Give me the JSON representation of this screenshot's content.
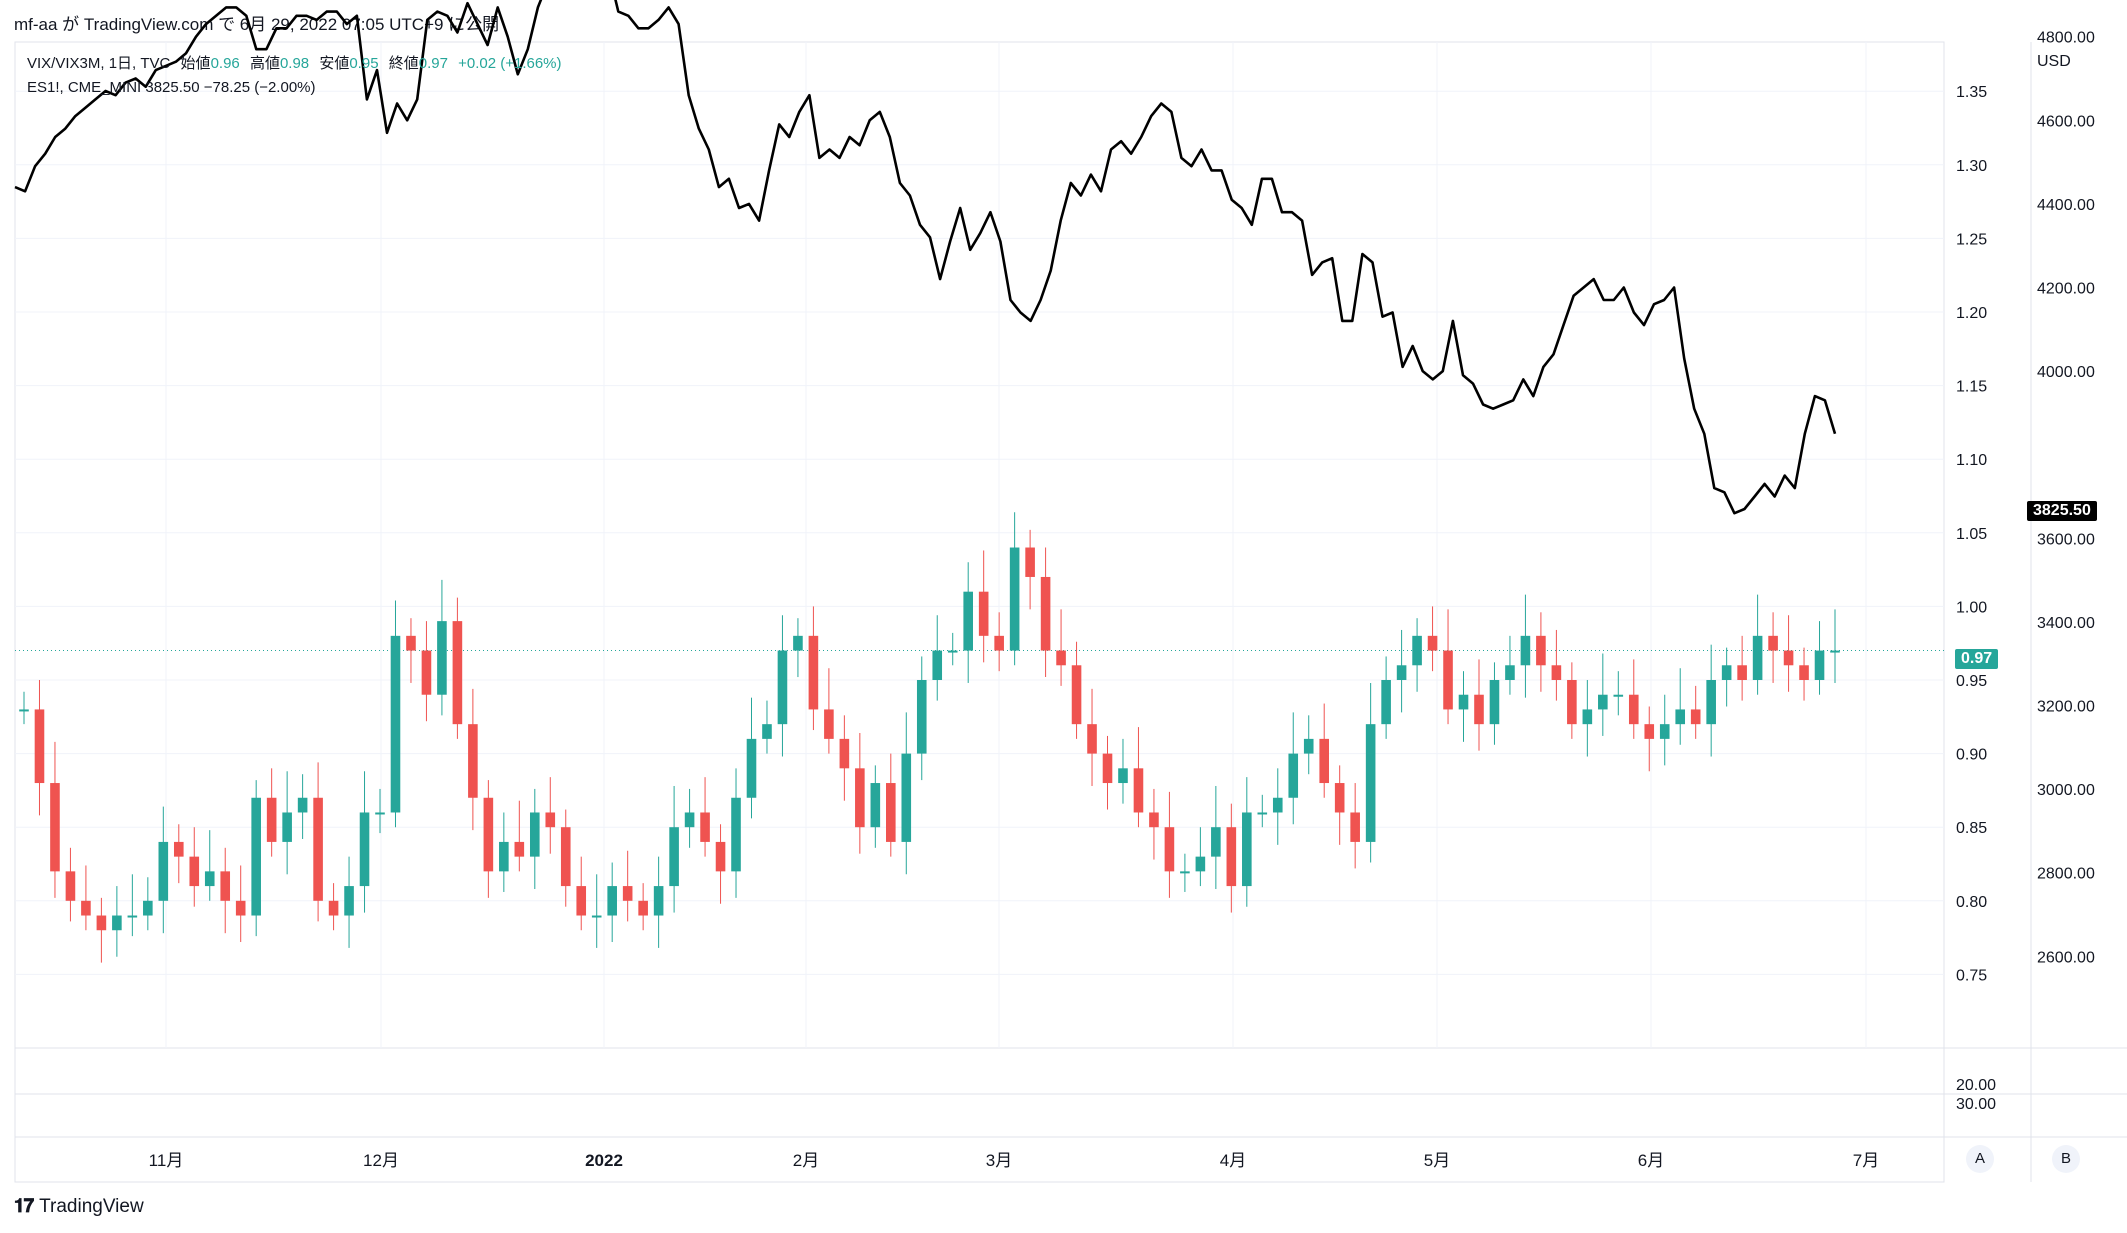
{
  "header": {
    "text": "mf-aa が TradingView.com で 6月 29, 2022 07:05 UTC+9 に公開"
  },
  "legend": {
    "symbol": "VIX/VIX3M, 1日, TVC",
    "open_label": "始値",
    "open_value": "0.96",
    "high_label": "高値",
    "high_value": "0.98",
    "low_label": "安値",
    "low_value": "0.95",
    "close_label": "終値",
    "close_value": "0.97",
    "change": "+0.02 (+1.66%)",
    "overlay": "ES1!, CME_MINI  3825.50  −78.25 (−2.00%)"
  },
  "axis": {
    "left_unit": "",
    "right_unit": "USD",
    "ratio_ticks": [
      "1.35",
      "1.30",
      "1.25",
      "1.20",
      "1.15",
      "1.10",
      "1.05",
      "1.00",
      "0.95",
      "0.90",
      "0.85",
      "0.80",
      "0.75"
    ],
    "usd_ticks": [
      "4800.00",
      "4600.00",
      "4400.00",
      "4200.00",
      "4000.00",
      "3600.00",
      "3400.00",
      "3200.00",
      "3000.00",
      "2800.00",
      "2600.00"
    ],
    "lower_ticks": [
      "20.00",
      "30.00"
    ],
    "time_ticks": [
      "11月",
      "12月",
      "2022",
      "2月",
      "3月",
      "4月",
      "5月",
      "6月",
      "7月"
    ],
    "current_ratio_tag": "0.97",
    "current_usd_tag": "3825.50"
  },
  "buttons": {
    "a": "A",
    "b": "B"
  },
  "footer": {
    "brand": "TradingView"
  },
  "colors": {
    "up": "#26a69a",
    "down": "#ef5350",
    "line": "#000000",
    "grid": "#f0f3fa",
    "tag_ratio": "#26a69a",
    "tag_usd": "#000000"
  },
  "chart_data": [
    {
      "type": "candlestick",
      "title": "VIX/VIX3M, 1日, TVC",
      "x_ticks": [
        "11月",
        "12月",
        "2022",
        "2月",
        "3月",
        "4月",
        "5月",
        "6月",
        "7月"
      ],
      "ylim": [
        0.72,
        1.39
      ],
      "series": [
        {
          "name": "VIX/VIX3M",
          "close": [
            0.93,
            0.88,
            0.82,
            0.8,
            0.79,
            0.78,
            0.79,
            0.79,
            0.8,
            0.84,
            0.83,
            0.81,
            0.82,
            0.8,
            0.79,
            0.87,
            0.84,
            0.86,
            0.87,
            0.8,
            0.79,
            0.81,
            0.86,
            0.86,
            0.98,
            0.97,
            0.94,
            0.99,
            0.92,
            0.87,
            0.82,
            0.84,
            0.83,
            0.86,
            0.85,
            0.81,
            0.79,
            0.79,
            0.81,
            0.8,
            0.79,
            0.81,
            0.85,
            0.86,
            0.84,
            0.82,
            0.87,
            0.91,
            0.92,
            0.97,
            0.98,
            0.93,
            0.91,
            0.89,
            0.85,
            0.88,
            0.84,
            0.9,
            0.95,
            0.97,
            0.97,
            1.01,
            0.98,
            0.97,
            1.04,
            1.02,
            0.97,
            0.96,
            0.92,
            0.9,
            0.88,
            0.89,
            0.86,
            0.85,
            0.82,
            0.82,
            0.83,
            0.85,
            0.81,
            0.86,
            0.86,
            0.87,
            0.9,
            0.91,
            0.88,
            0.86,
            0.84,
            0.92,
            0.95,
            0.96,
            0.98,
            0.97,
            0.93,
            0.94,
            0.92,
            0.95,
            0.96,
            0.98,
            0.96,
            0.95,
            0.92,
            0.93,
            0.94,
            0.94,
            0.92,
            0.91,
            0.92,
            0.93,
            0.92,
            0.95,
            0.96,
            0.95,
            0.98,
            0.97,
            0.96,
            0.95,
            0.97,
            0.97
          ]
        }
      ]
    },
    {
      "type": "line",
      "title": "ES1!, CME_MINI",
      "ylim": [
        2470,
        4980
      ],
      "series": [
        {
          "name": "ES1!",
          "values": [
            4440,
            4430,
            4490,
            4520,
            4560,
            4580,
            4610,
            4630,
            4650,
            4670,
            4660,
            4690,
            4700,
            4680,
            4720,
            4730,
            4740,
            4760,
            4800,
            4830,
            4850,
            4870,
            4870,
            4850,
            4770,
            4770,
            4820,
            4820,
            4850,
            4850,
            4840,
            4860,
            4860,
            4830,
            4850,
            4650,
            4720,
            4570,
            4640,
            4600,
            4650,
            4840,
            4860,
            4850,
            4810,
            4880,
            4830,
            4780,
            4870,
            4800,
            4710,
            4770,
            4870,
            4930,
            4930,
            4950,
            4930,
            4910,
            4950,
            4960,
            4860,
            4850,
            4820,
            4820,
            4840,
            4870,
            4830,
            4660,
            4580,
            4530,
            4440,
            4460,
            4390,
            4400,
            4360,
            4480,
            4590,
            4560,
            4620,
            4660,
            4510,
            4530,
            4510,
            4560,
            4540,
            4600,
            4620,
            4560,
            4450,
            4420,
            4350,
            4320,
            4220,
            4310,
            4390,
            4290,
            4330,
            4380,
            4310,
            4170,
            4140,
            4120,
            4170,
            4240,
            4360,
            4450,
            4420,
            4470,
            4430,
            4530,
            4550,
            4520,
            4560,
            4610,
            4640,
            4620,
            4510,
            4490,
            4530,
            4480,
            4480,
            4410,
            4390,
            4350,
            4460,
            4460,
            4380,
            4380,
            4360,
            4230,
            4260,
            4270,
            4120,
            4120,
            4280,
            4260,
            4130,
            4140,
            4010,
            4060,
            4000,
            3980,
            4000,
            4120,
            3990,
            3970,
            3920,
            3910,
            3920,
            3930,
            3980,
            3940,
            4010,
            4040,
            4110,
            4180,
            4200,
            4220,
            4170,
            4170,
            4200,
            4140,
            4110,
            4160,
            4170,
            4200,
            4030,
            3910,
            3850,
            3720,
            3710,
            3660,
            3670,
            3700,
            3730,
            3700,
            3750,
            3720,
            3850,
            3940,
            3930,
            3850
          ]
        }
      ]
    }
  ]
}
